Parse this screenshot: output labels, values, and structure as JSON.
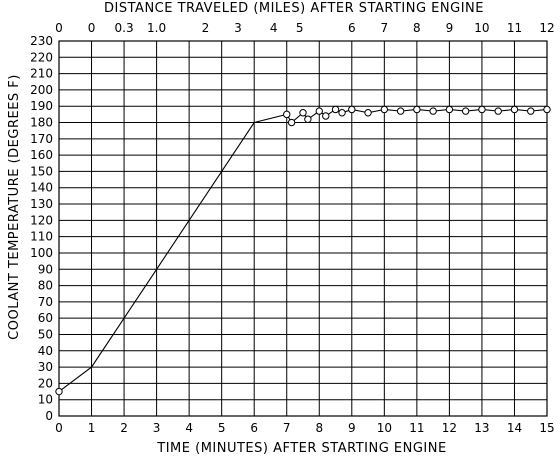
{
  "chart_data": {
    "type": "line",
    "title": "",
    "xlabel": "TIME (MINUTES) AFTER STARTING ENGINE",
    "x2label": "DISTANCE TRAVELED (MILES) AFTER STARTING ENGINE",
    "ylabel": "COOLANT TEMPERATURE (DEGREES F)",
    "xlim": [
      0,
      15
    ],
    "ylim": [
      0,
      230
    ],
    "x_ticks": [
      0,
      1,
      2,
      3,
      4,
      5,
      6,
      7,
      8,
      9,
      10,
      11,
      12,
      13,
      14,
      15
    ],
    "y_ticks": [
      0,
      10,
      20,
      30,
      40,
      50,
      60,
      70,
      80,
      90,
      100,
      110,
      120,
      130,
      140,
      150,
      160,
      170,
      180,
      190,
      200,
      210,
      220,
      230
    ],
    "grid": true,
    "top_axis_ticks": [
      {
        "label": "0",
        "time": 0
      },
      {
        "label": "0",
        "time": 1
      },
      {
        "label": "0.3",
        "time": 2
      },
      {
        "label": "1.0",
        "time": 3
      },
      {
        "label": "2",
        "time": 4.5
      },
      {
        "label": "3",
        "time": 5.5
      },
      {
        "label": "4",
        "time": 6.6
      },
      {
        "label": "5",
        "time": 7.4
      },
      {
        "label": "6",
        "time": 9
      },
      {
        "label": "7",
        "time": 10
      },
      {
        "label": "8",
        "time": 11
      },
      {
        "label": "9",
        "time": 12
      },
      {
        "label": "10",
        "time": 13
      },
      {
        "label": "11",
        "time": 14
      },
      {
        "label": "12",
        "time": 15
      }
    ],
    "series": [
      {
        "points": [
          [
            0,
            15
          ],
          [
            1,
            30
          ],
          [
            2,
            60
          ],
          [
            3,
            90
          ],
          [
            4,
            120
          ],
          [
            5,
            150
          ],
          [
            6,
            180
          ],
          [
            7,
            185
          ],
          [
            7.15,
            180
          ],
          [
            7.5,
            186
          ],
          [
            7.65,
            182
          ],
          [
            8,
            187
          ],
          [
            8.2,
            184
          ],
          [
            8.5,
            188
          ],
          [
            8.7,
            186
          ],
          [
            9,
            188
          ],
          [
            9.5,
            186
          ],
          [
            10,
            188
          ],
          [
            10.5,
            187
          ],
          [
            11,
            188
          ],
          [
            11.5,
            187
          ],
          [
            12,
            188
          ],
          [
            12.5,
            187
          ],
          [
            13,
            188
          ],
          [
            13.5,
            187
          ],
          [
            14,
            188
          ],
          [
            14.5,
            187
          ],
          [
            15,
            188
          ]
        ],
        "markers": [
          [
            0,
            15
          ],
          [
            7,
            185
          ],
          [
            7.15,
            180
          ],
          [
            7.5,
            186
          ],
          [
            7.65,
            182
          ],
          [
            8,
            187
          ],
          [
            8.2,
            184
          ],
          [
            8.5,
            188
          ],
          [
            8.7,
            186
          ],
          [
            9,
            188
          ],
          [
            9.5,
            186
          ],
          [
            10,
            188
          ],
          [
            10.5,
            187
          ],
          [
            11,
            188
          ],
          [
            11.5,
            187
          ],
          [
            12,
            188
          ],
          [
            12.5,
            187
          ],
          [
            13,
            188
          ],
          [
            13.5,
            187
          ],
          [
            14,
            188
          ],
          [
            14.5,
            187
          ],
          [
            15,
            188
          ]
        ]
      }
    ]
  },
  "colors": {
    "grid": "#000000",
    "line": "#000000",
    "background": "#ffffff"
  }
}
